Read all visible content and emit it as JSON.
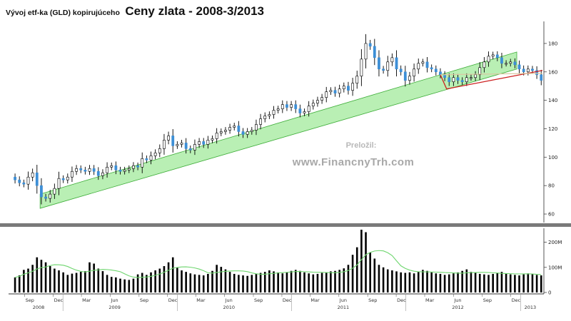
{
  "title": {
    "prefix": "Vývoj etf-ka (GLD) kopirujúceho",
    "main": "Ceny zlata - 2008-3/2013"
  },
  "watermark": {
    "label": "Preložil:",
    "url": "www.FinancnyTrh.com"
  },
  "colors": {
    "candle_body": "#3d8fd6",
    "candle_wick": "#000000",
    "channel_fill": "#b9efb4",
    "channel_stroke": "#3fae3a",
    "triangle_red": "#cc1f1f",
    "triangle_upper": "#d9c9a3",
    "volume_bar": "#000000",
    "volume_ma": "#6fd66f",
    "separator": "#7a7a7a"
  },
  "chart_data": [
    {
      "type": "candlestick",
      "name": "price",
      "y_ticks": [
        60,
        80,
        100,
        120,
        140,
        160,
        180
      ],
      "ylim": [
        55,
        193
      ],
      "grid": false,
      "x": [
        "2008-08-01",
        "2008-08-15",
        "2008-08-29",
        "2008-09-12",
        "2008-09-26",
        "2008-10-10",
        "2008-10-24",
        "2008-11-07",
        "2008-11-21",
        "2008-12-05",
        "2008-12-19",
        "2009-01-02",
        "2009-01-16",
        "2009-01-30",
        "2009-02-13",
        "2009-02-27",
        "2009-03-13",
        "2009-03-27",
        "2009-04-10",
        "2009-04-24",
        "2009-05-08",
        "2009-05-22",
        "2009-06-05",
        "2009-06-19",
        "2009-07-03",
        "2009-07-17",
        "2009-07-31",
        "2009-08-14",
        "2009-08-28",
        "2009-09-11",
        "2009-09-25",
        "2009-10-09",
        "2009-10-23",
        "2009-11-06",
        "2009-11-20",
        "2009-12-04",
        "2009-12-18",
        "2010-01-01",
        "2010-01-15",
        "2010-01-29",
        "2010-02-12",
        "2010-02-26",
        "2010-03-12",
        "2010-03-26",
        "2010-04-09",
        "2010-04-23",
        "2010-05-07",
        "2010-05-21",
        "2010-06-04",
        "2010-06-18",
        "2010-07-02",
        "2010-07-16",
        "2010-07-30",
        "2010-08-13",
        "2010-08-27",
        "2010-09-10",
        "2010-09-24",
        "2010-10-08",
        "2010-10-22",
        "2010-11-05",
        "2010-11-19",
        "2010-12-03",
        "2010-12-17",
        "2010-12-31",
        "2011-01-14",
        "2011-01-28",
        "2011-02-11",
        "2011-02-25",
        "2011-03-11",
        "2011-03-25",
        "2011-04-08",
        "2011-04-22",
        "2011-05-06",
        "2011-05-20",
        "2011-06-03",
        "2011-06-17",
        "2011-07-01",
        "2011-07-15",
        "2011-07-29",
        "2011-08-12",
        "2011-08-26",
        "2011-09-09",
        "2011-09-23",
        "2011-10-07",
        "2011-10-21",
        "2011-11-04",
        "2011-11-18",
        "2011-12-02",
        "2011-12-16",
        "2011-12-30",
        "2012-01-13",
        "2012-01-27",
        "2012-02-10",
        "2012-02-24",
        "2012-03-09",
        "2012-03-23",
        "2012-04-06",
        "2012-04-20",
        "2012-05-04",
        "2012-05-18",
        "2012-06-01",
        "2012-06-15",
        "2012-06-29",
        "2012-07-13",
        "2012-07-27",
        "2012-08-10",
        "2012-08-24",
        "2012-09-07",
        "2012-09-21",
        "2012-10-05",
        "2012-10-19",
        "2012-11-02",
        "2012-11-16",
        "2012-11-30",
        "2012-12-14",
        "2012-12-28",
        "2013-01-11",
        "2013-01-25",
        "2013-02-08",
        "2013-02-22",
        "2013-03-08"
      ],
      "close": [
        84,
        82,
        81,
        86,
        89,
        80,
        72,
        71,
        74,
        78,
        85,
        84,
        86,
        90,
        92,
        91,
        90,
        92,
        90,
        87,
        89,
        93,
        94,
        91,
        90,
        91,
        92,
        94,
        93,
        99,
        98,
        101,
        103,
        106,
        112,
        115,
        108,
        109,
        110,
        106,
        105,
        109,
        111,
        109,
        112,
        113,
        117,
        118,
        119,
        121,
        122,
        118,
        116,
        118,
        119,
        123,
        127,
        129,
        130,
        133,
        134,
        137,
        135,
        137,
        134,
        131,
        132,
        136,
        138,
        140,
        142,
        146,
        147,
        145,
        148,
        150,
        147,
        152,
        157,
        169,
        180,
        178,
        170,
        162,
        161,
        167,
        170,
        162,
        160,
        154,
        157,
        162,
        166,
        167,
        163,
        162,
        160,
        158,
        156,
        153,
        156,
        154,
        153,
        156,
        156,
        158,
        163,
        167,
        171,
        172,
        170,
        166,
        166,
        167,
        165,
        162,
        160,
        162,
        161,
        158,
        154
      ],
      "annotations": [
        "ascending channel (green)",
        "descending triangle (red)"
      ]
    },
    {
      "type": "bar",
      "name": "volume",
      "y_ticks": [
        "0",
        "100M",
        "200M"
      ],
      "ylim": [
        0,
        250
      ],
      "unit_note": "values in millions of shares, weekly",
      "values": [
        60,
        68,
        90,
        95,
        110,
        140,
        130,
        120,
        105,
        95,
        88,
        80,
        70,
        75,
        78,
        82,
        85,
        120,
        115,
        95,
        85,
        70,
        62,
        60,
        55,
        52,
        50,
        55,
        72,
        78,
        70,
        80,
        88,
        95,
        105,
        120,
        140,
        98,
        88,
        82,
        76,
        72,
        70,
        68,
        74,
        86,
        110,
        102,
        92,
        82,
        74,
        70,
        68,
        66,
        70,
        74,
        78,
        82,
        88,
        84,
        80,
        76,
        80,
        86,
        90,
        86,
        80,
        76,
        72,
        74,
        78,
        80,
        84,
        86,
        90,
        96,
        110,
        150,
        180,
        250,
        240,
        160,
        135,
        110,
        100,
        92,
        88,
        84,
        80,
        78,
        80,
        76,
        82,
        90,
        86,
        80,
        76,
        74,
        70,
        72,
        76,
        80,
        86,
        92,
        82,
        78,
        74,
        72,
        70,
        74,
        78,
        82,
        76,
        72,
        70,
        68,
        72,
        76,
        74,
        70,
        68
      ],
      "moving_average": true
    }
  ],
  "x_axis": {
    "month_labels": [
      {
        "text": "Sep",
        "date": "2008-09-01"
      },
      {
        "text": "Dec",
        "date": "2008-12-01"
      },
      {
        "text": "Mar",
        "date": "2009-03-01"
      },
      {
        "text": "Jun",
        "date": "2009-06-01"
      },
      {
        "text": "Sep",
        "date": "2009-09-01"
      },
      {
        "text": "Dec",
        "date": "2009-12-01"
      },
      {
        "text": "Mar",
        "date": "2010-03-01"
      },
      {
        "text": "Jun",
        "date": "2010-06-01"
      },
      {
        "text": "Sep",
        "date": "2010-09-01"
      },
      {
        "text": "Dec",
        "date": "2010-12-01"
      },
      {
        "text": "Mar",
        "date": "2011-03-01"
      },
      {
        "text": "Jun",
        "date": "2011-06-01"
      },
      {
        "text": "Sep",
        "date": "2011-09-01"
      },
      {
        "text": "Dec",
        "date": "2011-12-01"
      },
      {
        "text": "Mar",
        "date": "2012-03-01"
      },
      {
        "text": "Jun",
        "date": "2012-06-01"
      },
      {
        "text": "Sep",
        "date": "2012-09-01"
      },
      {
        "text": "Dec",
        "date": "2012-12-01"
      }
    ],
    "year_labels": [
      {
        "text": "2008",
        "date": "2008-10-15"
      },
      {
        "text": "2009",
        "date": "2009-06-15"
      },
      {
        "text": "2010",
        "date": "2010-06-15"
      },
      {
        "text": "2011",
        "date": "2011-06-15"
      },
      {
        "text": "2012",
        "date": "2012-06-15"
      },
      {
        "text": "2013",
        "date": "2013-02-01"
      }
    ],
    "year_boundaries": [
      "2009-01-01",
      "2010-01-01",
      "2011-01-01",
      "2012-01-01",
      "2013-01-01"
    ]
  }
}
